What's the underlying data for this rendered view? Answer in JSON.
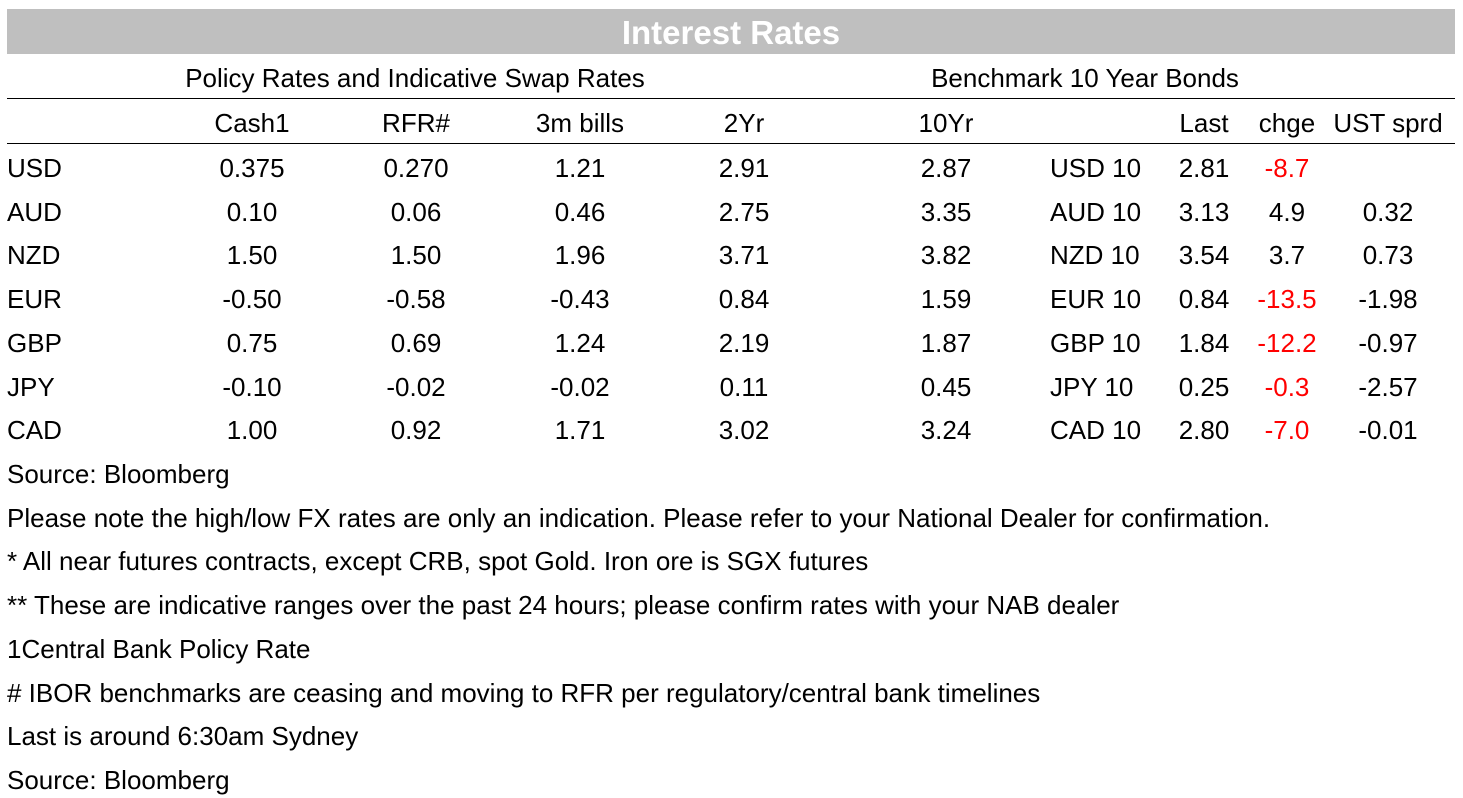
{
  "title": "Interest Rates",
  "group_headers": {
    "policy": "Policy Rates and Indicative Swap Rates",
    "benchmark": "Benchmark 10 Year Bonds"
  },
  "columns": {
    "cash": "Cash1",
    "rfr": "RFR#",
    "bills": "3m bills",
    "two_yr": "2Yr",
    "ten_yr": "10Yr",
    "last": "Last",
    "chge": "chge",
    "ust": "UST sprd"
  },
  "rows": [
    {
      "ccy": "USD",
      "cash": "0.375",
      "rfr": "0.270",
      "bills": "1.21",
      "two_yr": "2.91",
      "ten_yr": "2.87",
      "bond": "USD 10",
      "last": "2.81",
      "chge": "-8.7",
      "ust": ""
    },
    {
      "ccy": "AUD",
      "cash": "0.10",
      "rfr": "0.06",
      "bills": "0.46",
      "two_yr": "2.75",
      "ten_yr": "3.35",
      "bond": "AUD 10",
      "last": "3.13",
      "chge": "4.9",
      "ust": "0.32"
    },
    {
      "ccy": "NZD",
      "cash": "1.50",
      "rfr": "1.50",
      "bills": "1.96",
      "two_yr": "3.71",
      "ten_yr": "3.82",
      "bond": "NZD 10",
      "last": "3.54",
      "chge": "3.7",
      "ust": "0.73"
    },
    {
      "ccy": "EUR",
      "cash": "-0.50",
      "rfr": "-0.58",
      "bills": "-0.43",
      "two_yr": "0.84",
      "ten_yr": "1.59",
      "bond": "EUR 10",
      "last": "0.84",
      "chge": "-13.5",
      "ust": "-1.98"
    },
    {
      "ccy": "GBP",
      "cash": "0.75",
      "rfr": "0.69",
      "bills": "1.24",
      "two_yr": "2.19",
      "ten_yr": "1.87",
      "bond": "GBP 10",
      "last": "1.84",
      "chge": "-12.2",
      "ust": "-0.97"
    },
    {
      "ccy": "JPY",
      "cash": "-0.10",
      "rfr": "-0.02",
      "bills": "-0.02",
      "two_yr": "0.11",
      "ten_yr": "0.45",
      "bond": "JPY 10",
      "last": "0.25",
      "chge": "-0.3",
      "ust": "-2.57"
    },
    {
      "ccy": "CAD",
      "cash": "1.00",
      "rfr": "0.92",
      "bills": "1.71",
      "two_yr": "3.02",
      "ten_yr": "3.24",
      "bond": "CAD 10",
      "last": "2.80",
      "chge": "-7.0",
      "ust": "-0.01"
    }
  ],
  "notes": [
    "Source: Bloomberg",
    "Please note the high/low FX rates are only an indication. Please refer to your National Dealer for confirmation.",
    "* All near futures contracts, except CRB, spot Gold.  Iron ore is SGX futures",
    "** These are indicative ranges over the past 24 hours; please confirm rates with your NAB dealer",
    "1Central Bank Policy Rate",
    "# IBOR benchmarks are ceasing and moving to RFR per regulatory/central bank timelines",
    "Last is around 6:30am Sydney",
    "Source: Bloomberg"
  ],
  "colors": {
    "title_bg": "#bfbfbf",
    "negative_change": "#ff0000"
  }
}
